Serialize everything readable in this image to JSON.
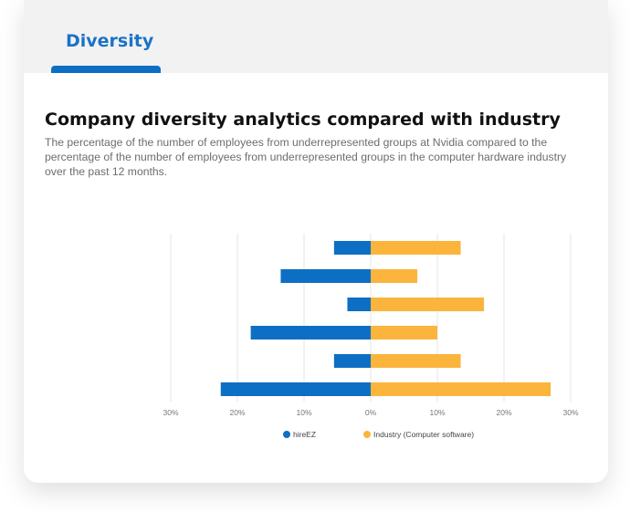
{
  "tab": {
    "label": "Diversity"
  },
  "section": {
    "title": "Company diversity analytics compared with industry",
    "description": "The percentage of the number of employees from underrepresented groups at Nvidia compared to the percentage of the number of employees from underrepresented groups in the computer hardware industry over the past 12 months."
  },
  "colors": {
    "accent": "#0d6fc4",
    "industry": "#fbb43c",
    "company": "#0d6fc4"
  },
  "legend": [
    "hireEZ",
    "Industry (Computer software)"
  ],
  "chart_data": {
    "type": "bar",
    "orientation": "horizontal-diverging",
    "xlim": [
      -30,
      30
    ],
    "x_tick_labels": [
      "30%",
      "20%",
      "10%",
      "0%",
      "10%",
      "20%",
      "30%"
    ],
    "grid": true,
    "legend_position": "bottom",
    "series": [
      {
        "name": "hireEZ",
        "values": [
          -5.5,
          -13.5,
          -3.5,
          -18,
          -5.5,
          -22.5
        ]
      },
      {
        "name": "Industry (Computer software)",
        "values": [
          13.5,
          7,
          17,
          10,
          13.5,
          27
        ]
      }
    ]
  }
}
